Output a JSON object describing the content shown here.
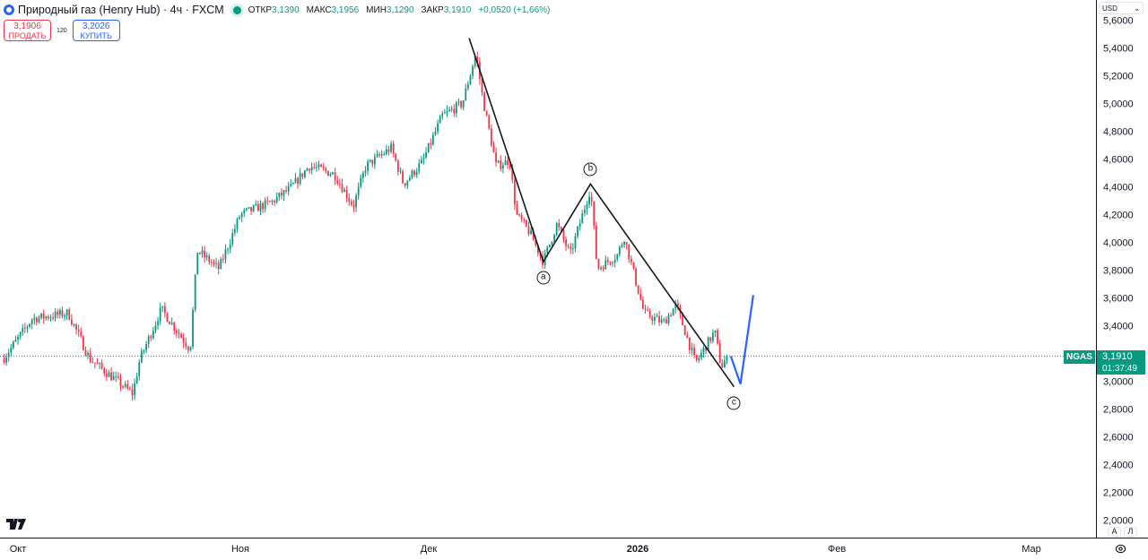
{
  "header": {
    "title": "Природный газ (Henry Hub) · 4ч · FXCM",
    "ohlc": [
      {
        "label": "ОТКР",
        "value": "3,1390"
      },
      {
        "label": "МАКС",
        "value": "3,1956"
      },
      {
        "label": "МИН",
        "value": "3,1290"
      },
      {
        "label": "ЗАКР",
        "value": "3,1910"
      }
    ],
    "change": "+0,0520 (+1,66%)",
    "sell_price": "3,1906",
    "sell_label": "ПРОДАТЬ",
    "spread": "120",
    "buy_price": "3,2026",
    "buy_label": "КУПИТЬ"
  },
  "axis": {
    "currency": "USD",
    "symbol_label": "NGAS",
    "last_price": "3,1910",
    "countdown": "01:37:49",
    "auto_label": "A",
    "log_label": "Л"
  },
  "colors": {
    "up": "#089981",
    "down": "#f23645",
    "wave": "#131722",
    "projection": "#2962ff",
    "price_line": "#089981"
  },
  "chart_data": {
    "type": "candlestick",
    "title": "Природный газ (Henry Hub)",
    "interval": "4ч",
    "grid": false,
    "ylim": [
      1.98,
      5.65
    ],
    "y_ticks": [
      "5,6000",
      "5,4000",
      "5,2000",
      "5,0000",
      "4,8000",
      "4,6000",
      "4,4000",
      "4,2000",
      "4,0000",
      "3,8000",
      "3,6000",
      "3,4000",
      "3,0000",
      "2,8000",
      "2,6000",
      "2,4000",
      "2,2000",
      "2,0000"
    ],
    "y_tick_values": [
      5.6,
      5.4,
      5.2,
      5.0,
      4.8,
      4.6,
      4.4,
      4.2,
      4.0,
      3.8,
      3.6,
      3.4,
      3.0,
      2.8,
      2.6,
      2.4,
      2.2,
      2.0
    ],
    "x_ticks": [
      {
        "label": "Окт",
        "date": "2025-10-01"
      },
      {
        "label": "Ноя",
        "date": "2025-11-01"
      },
      {
        "label": "Дек",
        "date": "2025-12-01"
      },
      {
        "label": "2026",
        "date": "2026-01-01",
        "bold": true
      },
      {
        "label": "Фев",
        "date": "2026-02-01"
      },
      {
        "label": "Мар",
        "date": "2026-03-01"
      }
    ],
    "price_path": [
      [
        "2025-09-29",
        3.17
      ],
      [
        "2025-10-03",
        3.46
      ],
      [
        "2025-10-08",
        3.5
      ],
      [
        "2025-10-11",
        3.17
      ],
      [
        "2025-10-17",
        2.92
      ],
      [
        "2025-10-18",
        3.17
      ],
      [
        "2025-10-21",
        3.53
      ],
      [
        "2025-10-25",
        3.24
      ],
      [
        "2025-10-26",
        3.95
      ],
      [
        "2025-10-29",
        3.82
      ],
      [
        "2025-11-01",
        4.21
      ],
      [
        "2025-11-06",
        4.3
      ],
      [
        "2025-11-09",
        4.4
      ],
      [
        "2025-11-12",
        4.56
      ],
      [
        "2025-11-16",
        4.5
      ],
      [
        "2025-11-19",
        4.27
      ],
      [
        "2025-11-21",
        4.56
      ],
      [
        "2025-11-25",
        4.69
      ],
      [
        "2025-11-27",
        4.43
      ],
      [
        "2025-11-30",
        4.59
      ],
      [
        "2025-12-03",
        4.92
      ],
      [
        "2025-12-06",
        5.01
      ],
      [
        "2025-12-08",
        5.37
      ],
      [
        "2025-12-09",
        5.05
      ],
      [
        "2025-12-11",
        4.56
      ],
      [
        "2025-12-13",
        4.6
      ],
      [
        "2025-12-14",
        4.21
      ],
      [
        "2025-12-16",
        4.08
      ],
      [
        "2025-12-18",
        3.87
      ],
      [
        "2025-12-20",
        4.14
      ],
      [
        "2025-12-22",
        3.92
      ],
      [
        "2025-12-25",
        4.4
      ],
      [
        "2025-12-26",
        3.82
      ],
      [
        "2025-12-29",
        3.92
      ],
      [
        "2025-12-30",
        4.05
      ],
      [
        "2026-01-02",
        3.5
      ],
      [
        "2026-01-05",
        3.43
      ],
      [
        "2026-01-07",
        3.56
      ],
      [
        "2026-01-10",
        3.14
      ],
      [
        "2026-01-13",
        3.37
      ],
      [
        "2026-01-14",
        3.11
      ],
      [
        "2026-01-15",
        3.19
      ]
    ],
    "last_close": 3.191,
    "annotations": {
      "wave_abc": [
        {
          "date": "2025-12-07",
          "price": 5.48,
          "label": ""
        },
        {
          "date": "2025-12-18",
          "price": 3.87,
          "label": "a"
        },
        {
          "date": "2025-12-25",
          "price": 4.43,
          "label": "b"
        },
        {
          "date": "2026-01-16",
          "price": 2.97,
          "label": "c"
        }
      ],
      "projection": [
        {
          "date": "2026-01-15T12:00",
          "price": 3.19
        },
        {
          "date": "2026-01-17",
          "price": 2.99
        },
        {
          "date": "2026-01-19",
          "price": 3.63
        }
      ]
    }
  }
}
